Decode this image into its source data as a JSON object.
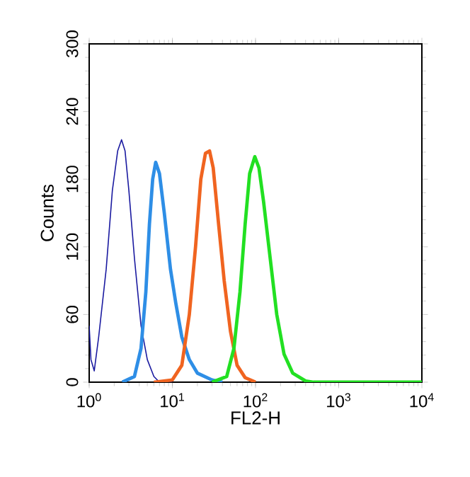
{
  "chart_data": {
    "type": "line",
    "xlabel": "FL2-H",
    "ylabel": "Counts",
    "log": "x",
    "xlim": [
      1,
      10000
    ],
    "ylim": [
      0,
      300
    ],
    "xticks": [
      {
        "value": 1,
        "label": "10$^{0}$"
      },
      {
        "value": 10,
        "label": "10$^{1}$"
      },
      {
        "value": 100,
        "label": "10$^{2}$"
      },
      {
        "value": 1000,
        "label": "10$^{3}$"
      },
      {
        "value": 10000,
        "label": "10$^{4}$"
      }
    ],
    "yticks": [
      0,
      60,
      120,
      180,
      240,
      300
    ],
    "grid": false,
    "marker": "none",
    "line_style": "solid",
    "series": [
      {
        "color": "#1a1aa0",
        "x": [
          1,
          1.05,
          1.15,
          1.3,
          1.6,
          1.9,
          2.2,
          2.45,
          2.7,
          3.0,
          3.5,
          4.2,
          5,
          6,
          7,
          10
        ],
        "values": [
          50,
          20,
          10,
          40,
          100,
          170,
          205,
          215,
          205,
          170,
          110,
          50,
          20,
          5,
          0,
          0
        ]
      },
      {
        "color": "#2e8ee6",
        "x": [
          2.5,
          3.5,
          4.2,
          4.8,
          5.3,
          5.8,
          6.3,
          7,
          8,
          9.5,
          11,
          13,
          16,
          20,
          30,
          40
        ],
        "values": [
          0,
          5,
          30,
          80,
          140,
          180,
          195,
          185,
          150,
          100,
          70,
          40,
          20,
          8,
          2,
          0
        ]
      },
      {
        "color": "#f06420",
        "x": [
          6,
          10,
          13,
          16,
          19,
          22,
          25,
          28,
          31,
          36,
          42,
          50,
          60,
          75,
          100
        ],
        "values": [
          0,
          2,
          15,
          60,
          120,
          180,
          203,
          205,
          190,
          140,
          90,
          45,
          15,
          4,
          0
        ]
      },
      {
        "color": "#22e022",
        "x": [
          30,
          45,
          55,
          65,
          75,
          85,
          98,
          110,
          125,
          150,
          180,
          220,
          280,
          400,
          500,
          10000
        ],
        "values": [
          0,
          5,
          30,
          80,
          140,
          185,
          200,
          190,
          160,
          110,
          60,
          25,
          8,
          1,
          0,
          0
        ]
      }
    ]
  }
}
